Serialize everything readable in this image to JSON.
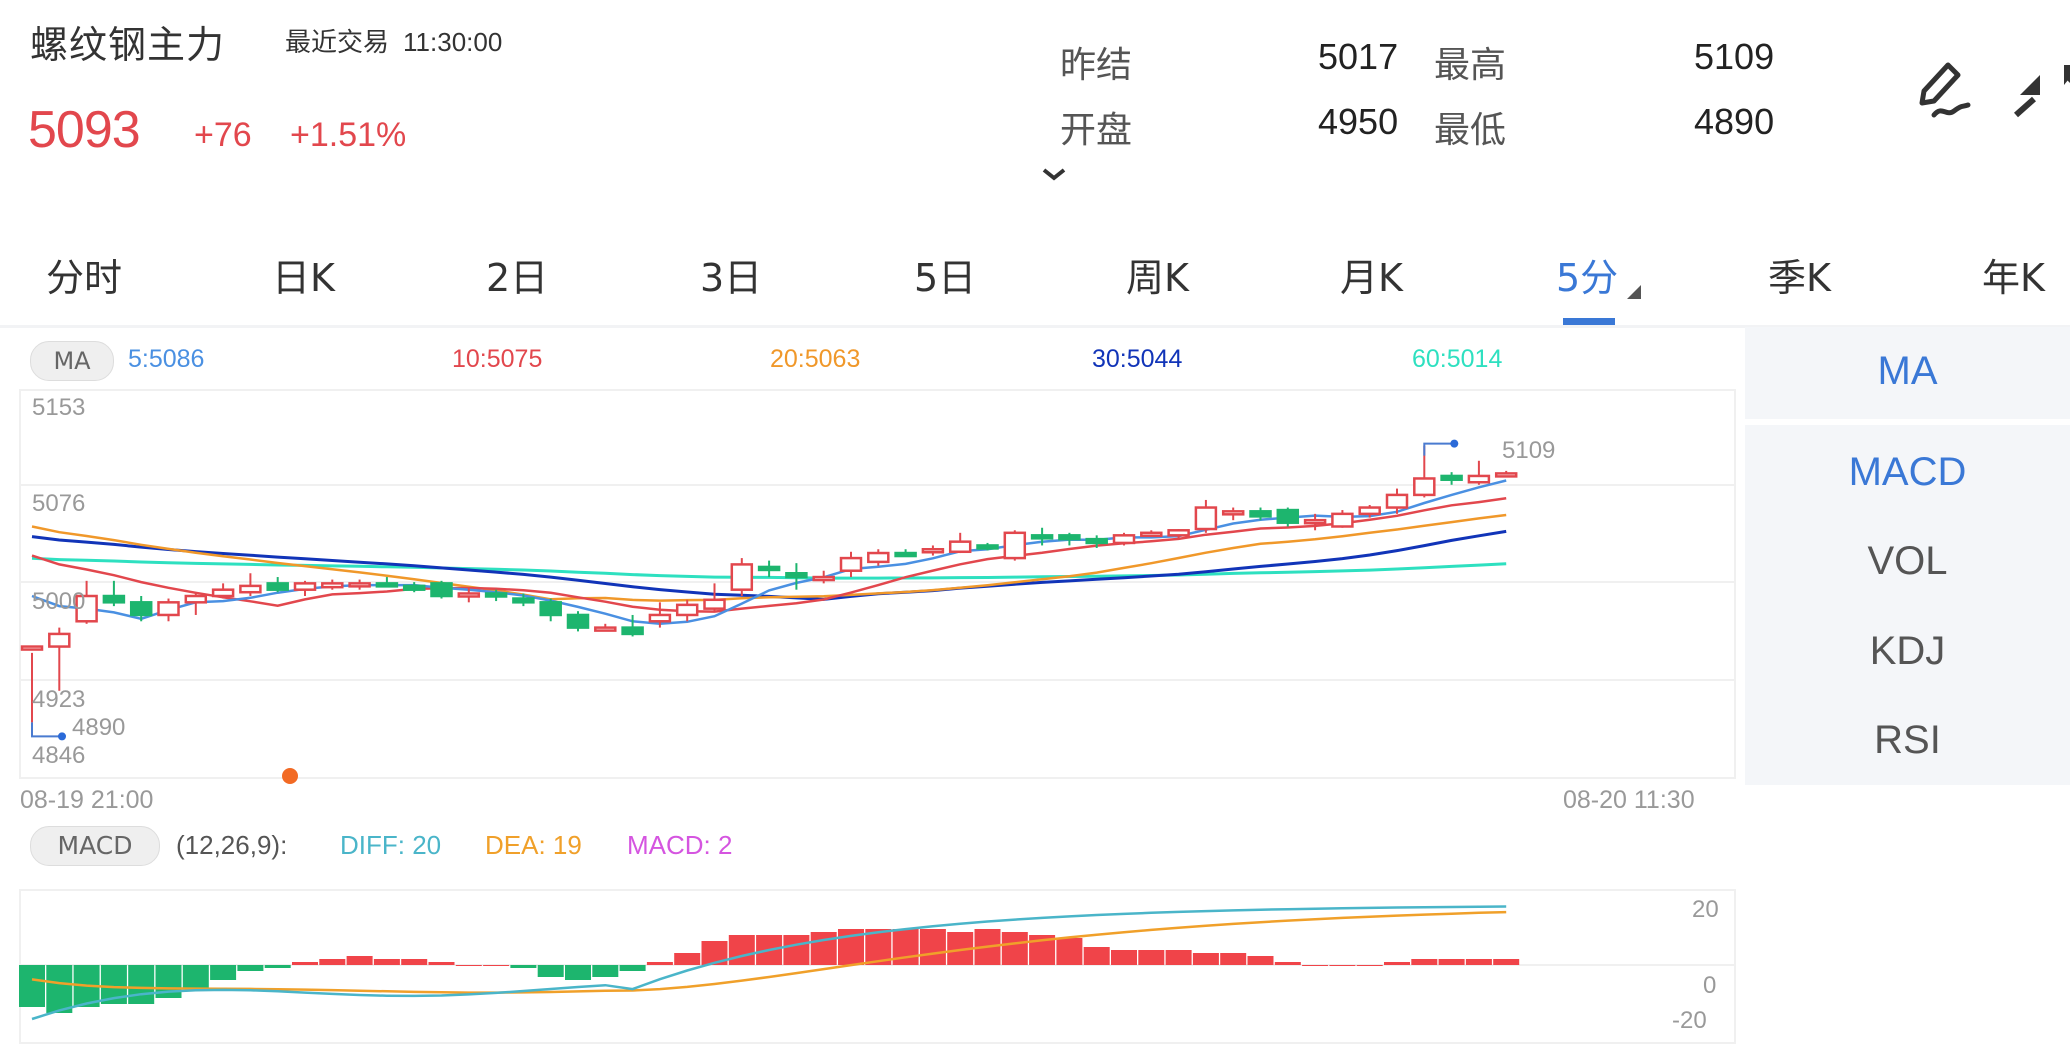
{
  "header": {
    "title": "螺纹钢主力",
    "last_trade_label": "最近交易",
    "last_trade_time": "11:30:00",
    "price": "5093",
    "change": "+76",
    "change_pct": "+1.51%",
    "stats": [
      {
        "label": "昨结",
        "value": "5017"
      },
      {
        "label": "最高",
        "value": "5109"
      },
      {
        "label": "开盘",
        "value": "4950"
      },
      {
        "label": "最低",
        "value": "4890"
      }
    ],
    "icons": {
      "draw": "pen-draw-icon",
      "collapse": "collapse-arrows-icon",
      "expand": "chevron-down-icon"
    }
  },
  "tabs": [
    {
      "label": "分时",
      "active": false
    },
    {
      "label": "日K",
      "active": false
    },
    {
      "label": "2日",
      "active": false
    },
    {
      "label": "3日",
      "active": false
    },
    {
      "label": "5日",
      "active": false
    },
    {
      "label": "周K",
      "active": false
    },
    {
      "label": "月K",
      "active": false
    },
    {
      "label": "5分",
      "active": true
    },
    {
      "label": "季K",
      "active": false
    },
    {
      "label": "年K",
      "active": false
    }
  ],
  "ma_legend": {
    "badge": "MA",
    "items": [
      {
        "text": "5:5086",
        "color": "#4a90e2"
      },
      {
        "text": "10:5075",
        "color": "#e2474d"
      },
      {
        "text": "20:5063",
        "color": "#f0982a"
      },
      {
        "text": "30:5044",
        "color": "#1134b8"
      },
      {
        "text": "60:5014",
        "color": "#2ee0c0"
      }
    ]
  },
  "side_panel": {
    "main": [
      {
        "label": "MA",
        "active": true
      }
    ],
    "sub": [
      {
        "label": "MACD",
        "active": true
      },
      {
        "label": "VOL",
        "active": false
      },
      {
        "label": "KDJ",
        "active": false
      },
      {
        "label": "RSI",
        "active": false
      }
    ]
  },
  "price_axis": {
    "labels": [
      "5153",
      "5076",
      "5000",
      "4923",
      "4846"
    ],
    "high_marker": "5109",
    "low_marker": "4890"
  },
  "time_axis": {
    "start": "08-19 21:00",
    "end": "08-20 11:30"
  },
  "macd_legend": {
    "badge": "MACD",
    "params": "(12,26,9):",
    "diff": "DIFF: 20",
    "dea": "DEA: 19",
    "macd": "MACD: 2",
    "colors": {
      "diff": "#4ab5c9",
      "dea": "#f0a02a",
      "macd": "#d555e0"
    }
  },
  "macd_axis": {
    "labels": [
      "20",
      "0",
      "-20"
    ]
  },
  "colors": {
    "up": "#e2474d",
    "down": "#1db56e",
    "accent": "#3a78d6",
    "ma5": "#4a90e2",
    "ma10": "#e2474d",
    "ma20": "#f0982a",
    "ma30": "#1134b8",
    "ma60": "#2ee0c0"
  },
  "chart_data": [
    {
      "type": "candlestick",
      "title": "螺纹钢主力 5分",
      "xlabel": "",
      "ylabel": "",
      "x_range": [
        "08-19 21:00",
        "08-20 11:30"
      ],
      "ylim": [
        4846,
        5153
      ],
      "y_ticks": [
        5153,
        5076,
        5000,
        4923,
        4846
      ],
      "grid": true,
      "candles": [
        [
          4950,
          4950,
          4890,
          4945
        ],
        [
          4950,
          4960,
          4915,
          4965
        ],
        [
          4970,
          4990,
          4968,
          5002
        ],
        [
          4990,
          4985,
          4982,
          5002
        ],
        [
          4985,
          4975,
          4970,
          4990
        ],
        [
          4975,
          4985,
          4970,
          4988
        ],
        [
          4985,
          4990,
          4975,
          4993
        ],
        [
          4990,
          4995,
          4988,
          5000
        ],
        [
          4993,
          4998,
          4990,
          5008
        ],
        [
          5000,
          4995,
          4993,
          5005
        ],
        [
          4995,
          5000,
          4990,
          5002
        ],
        [
          4997,
          5000,
          4995,
          5003
        ],
        [
          5000,
          5000,
          4995,
          5003
        ],
        [
          5000,
          4998,
          4997,
          5005
        ],
        [
          4998,
          4995,
          4993,
          5001
        ],
        [
          5000,
          4990,
          4988,
          5002
        ],
        [
          4990,
          4992,
          4985,
          4997
        ],
        [
          4992,
          4990,
          4986,
          4995
        ],
        [
          4988,
          4985,
          4982,
          4992
        ],
        [
          4985,
          4975,
          4970,
          4988
        ],
        [
          4975,
          4965,
          4962,
          4978
        ],
        [
          4965,
          4965,
          4962,
          4968
        ],
        [
          4965,
          4960,
          4958,
          4975
        ],
        [
          4970,
          4975,
          4965,
          4985
        ],
        [
          4975,
          4983,
          4970,
          4987
        ],
        [
          4980,
          4987,
          4978,
          5000
        ],
        [
          4995,
          5015,
          4990,
          5020
        ],
        [
          5013,
          5012,
          5005,
          5018
        ],
        [
          5008,
          5005,
          4995,
          5016
        ],
        [
          5005,
          5005,
          5000,
          5010
        ],
        [
          5010,
          5020,
          5005,
          5025
        ],
        [
          5017,
          5024,
          5014,
          5027
        ],
        [
          5024,
          5023,
          5022,
          5027
        ],
        [
          5025,
          5027,
          5022,
          5030
        ],
        [
          5025,
          5033,
          5024,
          5040
        ],
        [
          5030,
          5028,
          5026,
          5032
        ],
        [
          5020,
          5040,
          5018,
          5042
        ],
        [
          5038,
          5037,
          5030,
          5044
        ],
        [
          5038,
          5035,
          5030,
          5040
        ],
        [
          5035,
          5032,
          5028,
          5038
        ],
        [
          5032,
          5038,
          5030,
          5040
        ],
        [
          5040,
          5040,
          5038,
          5042
        ],
        [
          5038,
          5042,
          5035,
          5043
        ],
        [
          5043,
          5060,
          5040,
          5066
        ],
        [
          5055,
          5057,
          5050,
          5060
        ],
        [
          5057,
          5053,
          5050,
          5060
        ],
        [
          5058,
          5048,
          5045,
          5060
        ],
        [
          5050,
          5050,
          5042,
          5055
        ],
        [
          5045,
          5055,
          5044,
          5058
        ],
        [
          5055,
          5060,
          5052,
          5062
        ],
        [
          5060,
          5070,
          5055,
          5075
        ],
        [
          5070,
          5083,
          5068,
          5109
        ],
        [
          5085,
          5082,
          5078,
          5088
        ],
        [
          5080,
          5085,
          5078,
          5097
        ],
        [
          5087,
          5087,
          5085,
          5089
        ]
      ],
      "candle_format": [
        "open",
        "close",
        "low",
        "high"
      ],
      "series": [
        {
          "name": "MA5",
          "last": 5086
        },
        {
          "name": "MA10",
          "last": 5075
        },
        {
          "name": "MA20",
          "last": 5063
        },
        {
          "name": "MA30",
          "last": 5044
        },
        {
          "name": "MA60",
          "last": 5014
        }
      ],
      "annotations": [
        {
          "text": "5109",
          "type": "high"
        },
        {
          "text": "4890",
          "type": "low"
        }
      ]
    },
    {
      "type": "bar",
      "title": "MACD (12,26,9)",
      "ylim": [
        -25,
        25
      ],
      "y_ticks": [
        20,
        0,
        -20
      ],
      "macd_hist": [
        -14,
        -16,
        -14,
        -13,
        -13,
        -11,
        -8,
        -5,
        -2,
        -1,
        1,
        2,
        3,
        2,
        2,
        1,
        0,
        0,
        -1,
        -4,
        -5,
        -4,
        -2,
        1,
        4,
        8,
        10,
        10,
        10,
        11,
        12,
        12,
        12,
        12,
        11,
        12,
        11,
        10,
        9,
        6,
        5,
        5,
        5,
        4,
        4,
        3,
        1,
        0,
        0,
        0,
        1,
        2,
        2,
        2,
        2
      ],
      "series": [
        {
          "name": "DIFF",
          "last": 20
        },
        {
          "name": "DEA",
          "last": 19
        },
        {
          "name": "MACD",
          "last": 2
        }
      ]
    }
  ]
}
